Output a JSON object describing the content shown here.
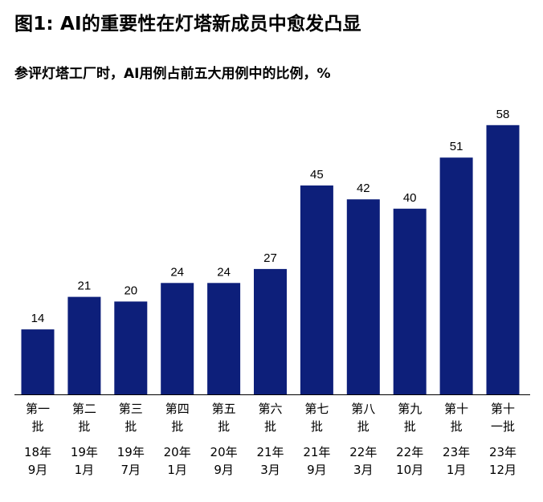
{
  "title": "图1: AI的重要性在灯塔新成员中愈发凸显",
  "subtitle": "参评灯塔工厂时，AI用例占前五大用例中的比例，%",
  "chart_data": {
    "type": "bar",
    "title": "图1: AI的重要性在灯塔新成员中愈发凸显",
    "subtitle": "参评灯塔工厂时，AI用例占前五大用例中的比例，%",
    "xlabel": "",
    "ylabel": "",
    "ylim": [
      0,
      60
    ],
    "grid": false,
    "bar_color": "#0d1f7a",
    "categories": [
      {
        "batch": [
          "第一",
          "批"
        ],
        "date": [
          "18年",
          "9月"
        ]
      },
      {
        "batch": [
          "第二",
          "批"
        ],
        "date": [
          "19年",
          "1月"
        ]
      },
      {
        "batch": [
          "第三",
          "批"
        ],
        "date": [
          "19年",
          "7月"
        ]
      },
      {
        "batch": [
          "第四",
          "批"
        ],
        "date": [
          "20年",
          "1月"
        ]
      },
      {
        "batch": [
          "第五",
          "批"
        ],
        "date": [
          "20年",
          "9月"
        ]
      },
      {
        "batch": [
          "第六",
          "批"
        ],
        "date": [
          "21年",
          "3月"
        ]
      },
      {
        "batch": [
          "第七",
          "批"
        ],
        "date": [
          "21年",
          "9月"
        ]
      },
      {
        "batch": [
          "第八",
          "批"
        ],
        "date": [
          "22年",
          "3月"
        ]
      },
      {
        "batch": [
          "第九",
          "批"
        ],
        "date": [
          "22年",
          "10月"
        ]
      },
      {
        "batch": [
          "第十",
          "批"
        ],
        "date": [
          "23年",
          "1月"
        ]
      },
      {
        "batch": [
          "第十",
          "一批"
        ],
        "date": [
          "23年",
          "12月"
        ]
      }
    ],
    "values": [
      14,
      21,
      20,
      24,
      24,
      27,
      45,
      42,
      40,
      51,
      58
    ]
  }
}
